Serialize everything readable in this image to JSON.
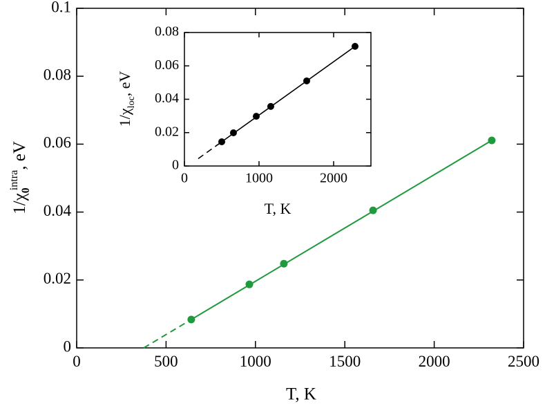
{
  "chart_data": [
    {
      "type": "scatter",
      "xlabel": "T, K",
      "ylabel": {
        "text": "1/χ",
        "sub": "0",
        "sup": "intra",
        "tail": ", eV"
      },
      "xlim": [
        0,
        2500
      ],
      "xticks": [
        0,
        500,
        1000,
        1500,
        2000,
        2500
      ],
      "ylim": [
        0,
        0.1
      ],
      "yticks": [
        0,
        0.02,
        0.04,
        0.06,
        0.08,
        0.1
      ],
      "color": "#1f9a3e",
      "points": {
        "x": [
          641,
          966,
          1159,
          1658,
          2322
        ],
        "y": [
          0.00835,
          0.0187,
          0.0248,
          0.0405,
          0.0611
        ]
      },
      "lines": [
        {
          "style": "dashed",
          "x": [
            375,
            641
          ],
          "y": [
            0,
            0.00835
          ]
        },
        {
          "style": "solid",
          "x": [
            641,
            2322
          ],
          "y": [
            0.00835,
            0.0611
          ]
        }
      ]
    },
    {
      "type": "scatter",
      "xlabel": "T, K",
      "ylabel": {
        "text": "1/χ",
        "sub": "loc",
        "tail": ", eV"
      },
      "xlim": [
        0,
        2500
      ],
      "xticks": [
        0,
        1000,
        2000
      ],
      "ylim": [
        0,
        0.08
      ],
      "yticks": [
        0,
        0.02,
        0.04,
        0.06,
        0.08
      ],
      "color": "#000000",
      "points": {
        "x": [
          500,
          657,
          963,
          1157,
          1639,
          2287
        ],
        "y": [
          0.0145,
          0.0199,
          0.0298,
          0.0357,
          0.051,
          0.0717
        ]
      },
      "lines": [
        {
          "style": "dashed",
          "x": [
            185,
            500
          ],
          "y": [
            0.0044,
            0.0145
          ]
        },
        {
          "style": "solid",
          "x": [
            500,
            2287
          ],
          "y": [
            0.0145,
            0.0717
          ]
        }
      ]
    }
  ]
}
